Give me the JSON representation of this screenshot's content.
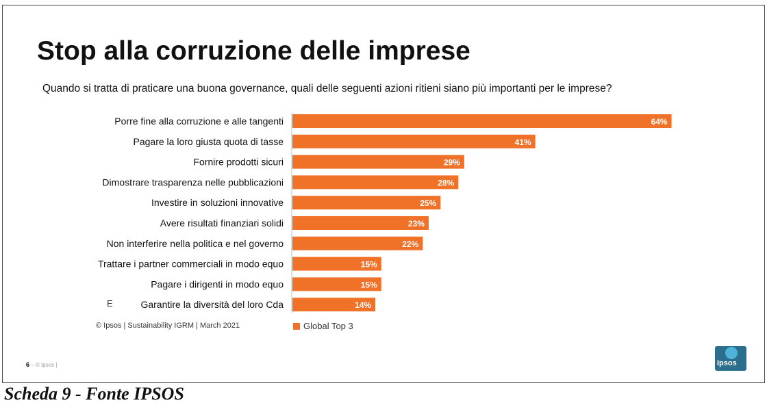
{
  "title": "Stop alla corruzione delle imprese",
  "question": "Quando si tratta di praticare una buona governance, quali delle seguenti azioni ritieni siano più importanti per le imprese?",
  "colors": {
    "bar": "#f07128",
    "value_label": "#ffffff"
  },
  "chart_data": {
    "type": "bar",
    "orientation": "horizontal",
    "categories": [
      "Porre fine alla corruzione e alle tangenti",
      "Pagare la loro giusta quota di tasse",
      "Fornire prodotti sicuri",
      "Dimostrare trasparenza nelle pubblicazioni",
      "Investire in soluzioni innovative",
      "Avere risultati finanziari solidi",
      "Non interferire nella politica e nel governo",
      "Trattare i partner commerciali in modo equo",
      "Pagare i dirigenti in modo equo",
      "Garantire la diversità del loro Cda"
    ],
    "series": [
      {
        "name": "Global Top 3",
        "values": [
          64,
          41,
          29,
          28,
          25,
          23,
          22,
          15,
          15,
          14
        ]
      }
    ],
    "value_labels": [
      "64%",
      "41%",
      "29%",
      "28%",
      "25%",
      "23%",
      "22%",
      "15%",
      "15%",
      "14%"
    ],
    "legend": "bottom",
    "grid": false
  },
  "last_row_marker": "E",
  "footer": {
    "source": "© Ipsos | Sustainability IGRM | March 2021",
    "legend_label": "Global Top 3"
  },
  "page": {
    "number": "6",
    "separator": "–",
    "copyright": "© Ipsos |"
  },
  "logo": {
    "text": "Ipsos"
  },
  "caption": "Scheda 9 - Fonte IPSOS"
}
